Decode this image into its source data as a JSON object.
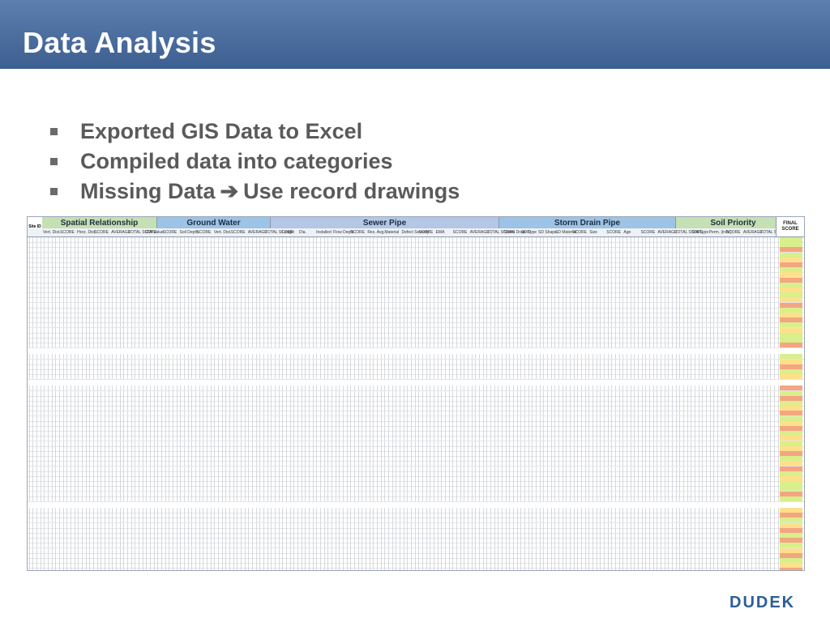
{
  "slide": {
    "title": "Data Analysis",
    "bullets": [
      "Exported GIS Data to Excel",
      "Compiled data into categories",
      "Missing Data",
      "Use record drawings"
    ],
    "logo_text": "DUDEK"
  },
  "spreadsheet": {
    "site_header": "Site ID",
    "groups": [
      {
        "label": "Spatial Relationship",
        "color": "#c5e0b4"
      },
      {
        "label": "Ground Water",
        "color": "#9dc3e6"
      },
      {
        "label": "Sewer Pipe",
        "color": "#b4c7e7"
      },
      {
        "label": "Storm Drain Pipe",
        "color": "#9dc3e6"
      },
      {
        "label": "Soil Priority",
        "color": "#c5e0b4"
      }
    ],
    "final_header": "FINAL SCORE",
    "subheaders": [
      "Vert. Dist.",
      "SCORE",
      "Horz. Dist.",
      "SCORE",
      "AVERAGE",
      "TOTAL SCORE",
      "GW Value",
      "SCORE",
      "Soil Depth",
      "SCORE",
      "Vert. Dist.",
      "SCORE",
      "AVERAGE",
      "TOTAL SCORE",
      "Length",
      "Dia.",
      "Installed",
      "Flow Depth",
      "SCORE",
      "Res. Avg.",
      "Material",
      "Defect Severity",
      "SCORE",
      "EMA",
      "SCORE",
      "AVERAGE",
      "TOTAL SCORE",
      "Storm Drain ID",
      "SD Type",
      "SD Shape",
      "SD Material",
      "SCORE",
      "Size",
      "SCORE",
      "Age",
      "SCORE",
      "AVERAGE",
      "TOTAL SCORE",
      "Soil Type",
      "Perm. (in/hr)",
      "SCORE",
      "AVERAGE",
      "TOTAL SCORE"
    ]
  }
}
